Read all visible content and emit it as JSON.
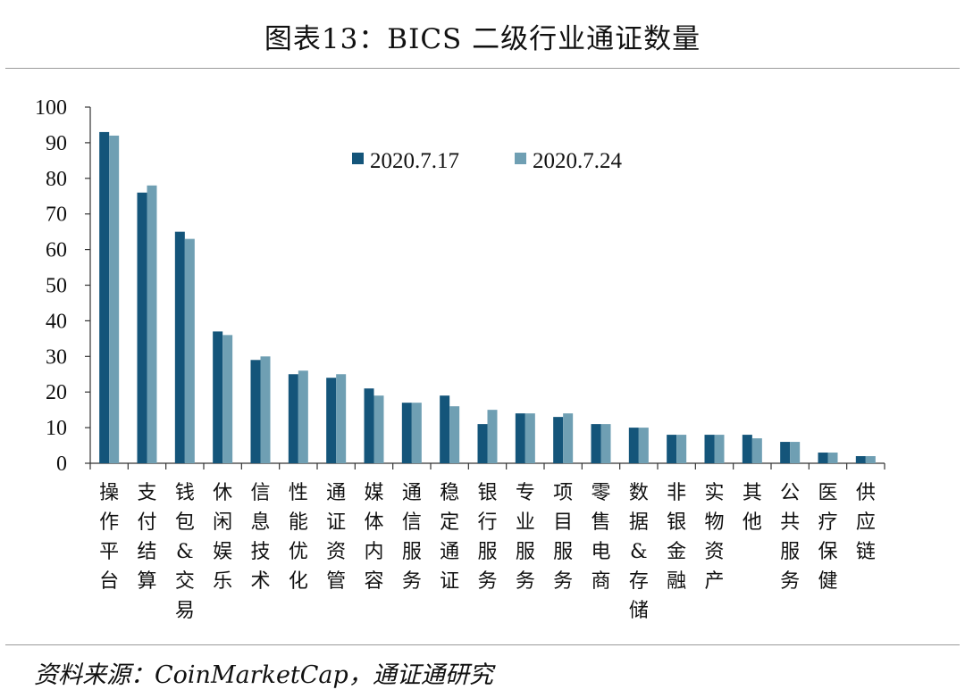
{
  "title": "图表13：BICS 二级行业通证数量",
  "source": "资料来源：CoinMarketCap，通证通研究",
  "colors": {
    "series1": "#14557a",
    "series2": "#6f9fb3",
    "axis": "#333333"
  },
  "chart_data": {
    "type": "bar",
    "ylim": [
      0,
      100
    ],
    "yticks": [
      0,
      10,
      20,
      30,
      40,
      50,
      60,
      70,
      80,
      90,
      100
    ],
    "grid": false,
    "legend_position": "top-center",
    "categories": [
      "操作平台",
      "支付结算",
      "钱包&交易",
      "休闲娱乐",
      "信息技术",
      "性能优化",
      "通证资管",
      "媒体内容",
      "通信服务",
      "稳定通证",
      "银行服务",
      "专业服务",
      "项目服务",
      "零售电商",
      "数据&存储",
      "非银金融",
      "实物资产",
      "其他",
      "公共服务",
      "医疗保健",
      "供应链"
    ],
    "series": [
      {
        "name": "2020.7.17",
        "values": [
          93,
          76,
          65,
          37,
          29,
          25,
          24,
          21,
          17,
          19,
          11,
          14,
          13,
          11,
          10,
          8,
          8,
          8,
          6,
          3,
          2
        ]
      },
      {
        "name": "2020.7.24",
        "values": [
          92,
          78,
          63,
          36,
          30,
          26,
          25,
          19,
          17,
          16,
          15,
          14,
          14,
          11,
          10,
          8,
          8,
          7,
          6,
          3,
          2
        ]
      }
    ]
  }
}
